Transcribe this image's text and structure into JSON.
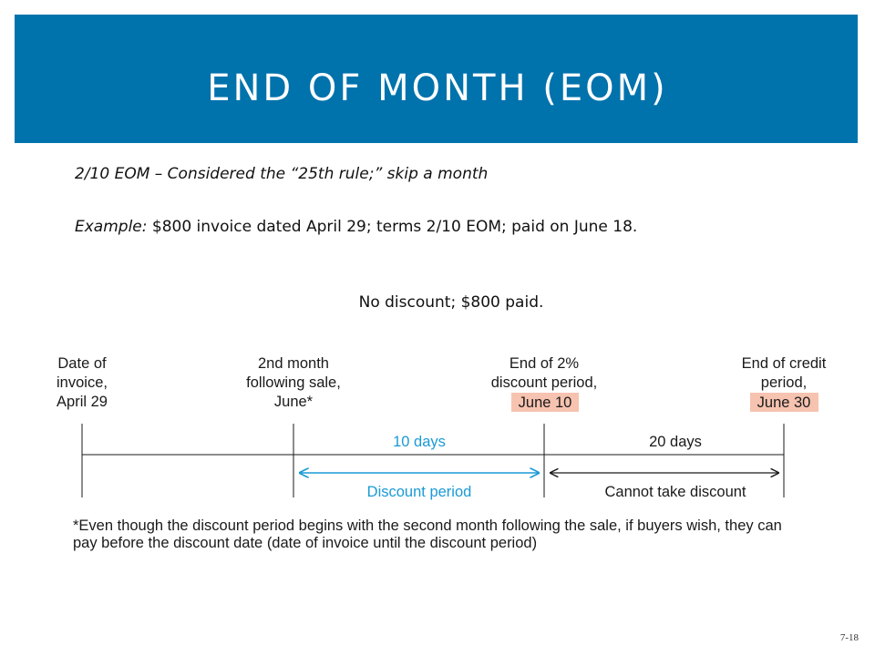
{
  "title": "END OF MONTH (EOM)",
  "rule_line": "2/10 EOM – Considered the “25th rule;” skip a month",
  "example": {
    "label": "Example:",
    "text": " $800 invoice dated April 29; terms 2/10 EOM; paid on June 18."
  },
  "result": "No discount; $800 paid.",
  "timeline": {
    "points": [
      {
        "lines": [
          "Date of",
          "invoice,",
          "April 29"
        ]
      },
      {
        "lines": [
          "2nd month",
          "following sale,",
          "June*"
        ]
      },
      {
        "lines": [
          "End of 2%",
          "discount period,"
        ],
        "highlight": "June 10"
      },
      {
        "lines": [
          "End of credit",
          "period,"
        ],
        "highlight": "June 30"
      }
    ],
    "spans": {
      "discount_days": "10 days",
      "credit_days": "20 days",
      "discount_label": "Discount period",
      "no_discount_label": "Cannot take discount"
    },
    "colors": {
      "blue": "#1a9ad6",
      "highlight": "#f6c3b0"
    }
  },
  "footnote": "*Even though the discount period begins with the second month following the sale, if buyers wish, they can pay before the discount date (date of invoice until the discount period)",
  "slide_number": "7-18"
}
